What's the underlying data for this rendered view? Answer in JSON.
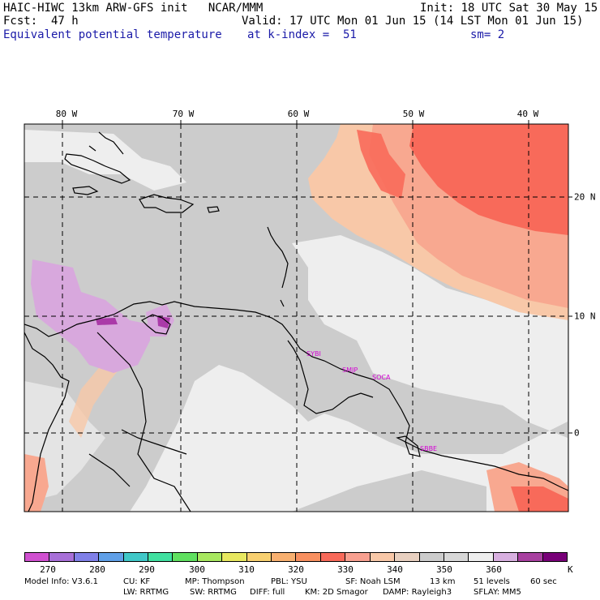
{
  "header": {
    "line1_left": "HAIC-HIWC 13km ARW-GFS init   NCAR/MMM",
    "line1_right": "Init: 18 UTC Sat 30 May 15",
    "line2_left": "Fcst:  47 h",
    "line2_right": "Valid: 17 UTC Mon 01 Jun 15 (14 LST Mon 01 Jun 15)",
    "line3_left": "Equivalent potential temperature",
    "line3_mid": "at k-index =  51",
    "line3_right": "sm= 2"
  },
  "map": {
    "lon_labels": [
      "80 W",
      "70 W",
      "60 W",
      "50 W",
      "40 W"
    ],
    "lat_labels": [
      "20 N",
      "10 N",
      "0"
    ],
    "stations": [
      "SYBI",
      "SMJP",
      "SOCA",
      "SBBE"
    ],
    "colors": {
      "background_grey": "#cccccc",
      "light_grey": "#eeeeee",
      "warm_salmon": "#f8c8a8",
      "salmon": "#f8a890",
      "red": "#f86a5a",
      "lavender": "#d8a8dd",
      "purple": "#aa3aa8",
      "coast": "#000000",
      "station_text": "#d400d4"
    }
  },
  "colorbar": {
    "colors": [
      "#d050d0",
      "#a870d8",
      "#8080e8",
      "#60a0e8",
      "#40c8c8",
      "#40e0a0",
      "#60e060",
      "#a8e860",
      "#e8e860",
      "#f8d070",
      "#f8b070",
      "#f89060",
      "#f86a5a",
      "#f8a090",
      "#f8c8a8",
      "#e8d0c0",
      "#cccccc",
      "#d8d8d8",
      "#eeeeee",
      "#d8b0e0",
      "#a840a0",
      "#780078"
    ],
    "labels": [
      "270",
      "280",
      "290",
      "300",
      "310",
      "320",
      "330",
      "340",
      "350",
      "360"
    ],
    "unit": "K"
  },
  "footer": {
    "line1": [
      "Model Info: V3.6.1",
      "CU: KF",
      "MP: Thompson",
      "PBL: YSU",
      "SF: Noah LSM",
      "13 km",
      "51 levels",
      "60 sec"
    ],
    "line2": [
      "LW: RRTMG",
      "SW: RRTMG",
      "DIFF: full",
      "KM: 2D Smagor",
      "DAMP: Rayleigh3",
      "SFLAY: MM5"
    ]
  }
}
